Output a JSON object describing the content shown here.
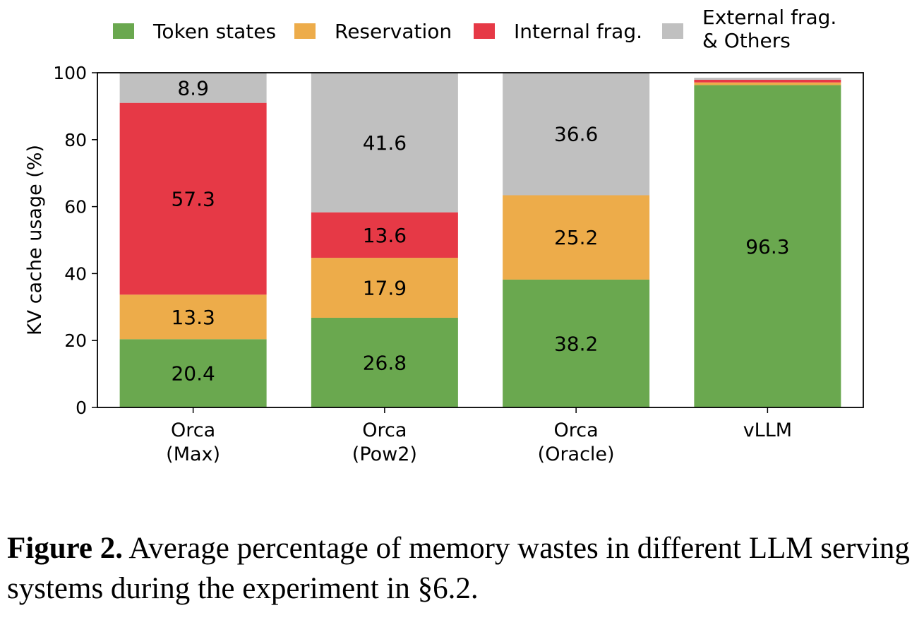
{
  "chart_data": {
    "type": "bar",
    "stacked": true,
    "categories": [
      [
        "Orca",
        "(Max)"
      ],
      [
        "Orca",
        "(Pow2)"
      ],
      [
        "Orca",
        "(Oracle)"
      ],
      [
        "vLLM"
      ]
    ],
    "series": [
      {
        "name": "Token states",
        "color": "#6aa84f",
        "values": [
          20.4,
          26.8,
          38.2,
          96.3
        ],
        "labels": [
          "20.4",
          "26.8",
          "38.2",
          "96.3"
        ]
      },
      {
        "name": "Reservation",
        "color": "#edac4a",
        "values": [
          13.3,
          17.9,
          25.2,
          0.8
        ],
        "labels": [
          "13.3",
          "17.9",
          "25.2",
          ""
        ]
      },
      {
        "name": "Internal frag.",
        "color": "#e63946",
        "values": [
          57.3,
          13.6,
          0.0,
          0.8
        ],
        "labels": [
          "57.3",
          "13.6",
          "",
          ""
        ]
      },
      {
        "name": "External frag.\n& Others",
        "color": "#c0c0c0",
        "values": [
          8.9,
          41.6,
          36.6,
          0.6
        ],
        "labels": [
          "8.9",
          "41.6",
          "36.6",
          ""
        ]
      }
    ],
    "ylabel": "KV cache usage (%)",
    "xlabel": "",
    "ylim": [
      0,
      100
    ],
    "yticks": [
      "0",
      "20",
      "40",
      "60",
      "80",
      "100"
    ],
    "grid": false,
    "legend": "top"
  },
  "caption": {
    "label": "Figure 2.",
    "text": " Average percentage of memory wastes in different LLM serving systems during the experiment in §6.2."
  }
}
